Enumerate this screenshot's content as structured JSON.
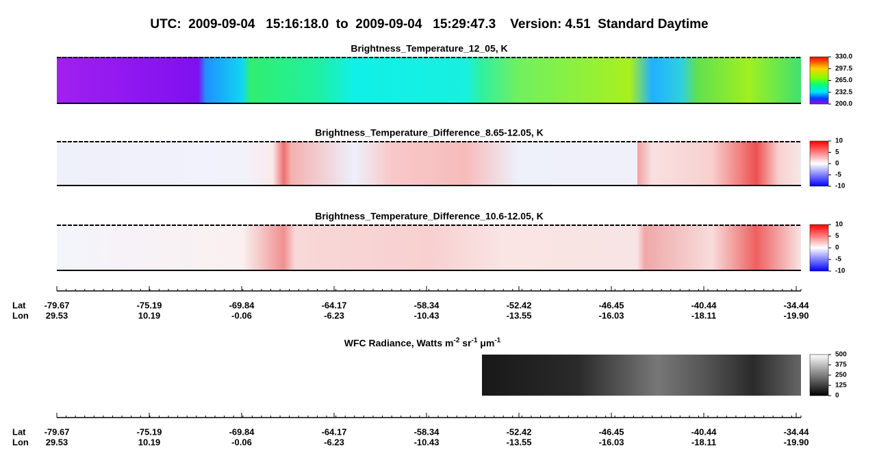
{
  "header": {
    "title": "UTC:  2009-09-04   15:16:18.0  to  2009-09-04   15:29:47.3    Version: 4.51  Standard Daytime"
  },
  "panels": [
    {
      "title": "Brightness_Temperature_12_05, K",
      "colorbar_labels": [
        "330.0",
        "297.5",
        "265.0",
        "232.5",
        "200.0"
      ]
    },
    {
      "title": "Brightness_Temperature_Difference_8.65-12.05, K",
      "colorbar_labels": [
        "10",
        "5",
        "0",
        "-5",
        "-10"
      ]
    },
    {
      "title": "Brightness_Temperature_Difference_10.6-12.05, K",
      "colorbar_labels": [
        "10",
        "5",
        "0",
        "-5",
        "-10"
      ]
    },
    {
      "title_parts": [
        "WFC Radiance, Watts m",
        "-2",
        " sr",
        "-1",
        " μm",
        "-1"
      ],
      "colorbar_labels": [
        "500",
        "375",
        "250",
        "125",
        "0"
      ]
    }
  ],
  "axes": [
    {
      "lat_label": "Lat",
      "lon_label": "Lon",
      "lat": [
        "-79.67",
        "-75.19",
        "-69.84",
        "-64.17",
        "-58.34",
        "-52.42",
        "-46.45",
        "-40.44",
        "-34.44"
      ],
      "lon": [
        "29.53",
        "10.19",
        "-0.06",
        "-6.23",
        "-10.43",
        "-13.55",
        "-16.03",
        "-18.11",
        "-19.90"
      ]
    },
    {
      "lat_label": "Lat",
      "lon_label": "Lon",
      "lat": [
        "-79.67",
        "-75.19",
        "-69.84",
        "-64.17",
        "-58.34",
        "-52.42",
        "-46.45",
        "-40.44",
        "-34.44"
      ],
      "lon": [
        "29.53",
        "10.19",
        "-0.06",
        "-6.23",
        "-10.43",
        "-13.55",
        "-16.03",
        "-18.11",
        "-19.90"
      ]
    }
  ]
}
